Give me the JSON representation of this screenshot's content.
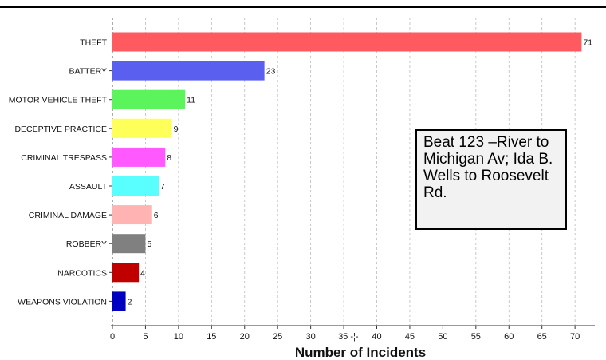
{
  "chart_data": {
    "type": "bar",
    "orientation": "horizontal",
    "categories": [
      "THEFT",
      "BATTERY",
      "MOTOR VEHICLE THEFT",
      "DECEPTIVE PRACTICE",
      "CRIMINAL TRESPASS",
      "ASSAULT",
      "CRIMINAL DAMAGE",
      "ROBBERY",
      "NARCOTICS",
      "WEAPONS VIOLATION"
    ],
    "values": [
      71,
      23,
      11,
      9,
      8,
      7,
      6,
      5,
      4,
      2
    ],
    "colors": [
      "#ff5a5f",
      "#5b5ff0",
      "#5cf45c",
      "#ffff59",
      "#ff59ff",
      "#59ffff",
      "#ffb3b3",
      "#808080",
      "#c00000",
      "#0000c0"
    ],
    "xlabel": "Number of Incidents",
    "xlim": [
      0,
      73
    ],
    "xticks": [
      "0",
      "5",
      "10",
      "15",
      "20",
      "25",
      "30",
      "35 -¦-",
      "40",
      "45",
      "50",
      "55",
      "60",
      "65",
      "70"
    ],
    "grid": "vertical-dashed",
    "annotation": "Beat 123 –River to Michigan Av; Ida B. Wells to Roosevelt Rd."
  }
}
